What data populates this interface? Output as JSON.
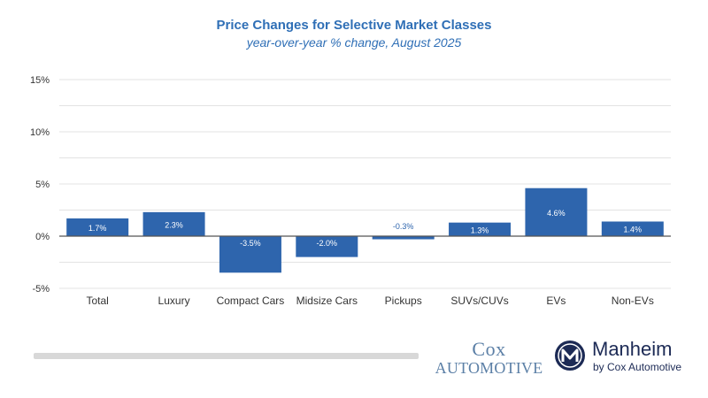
{
  "chart_data": {
    "type": "bar",
    "title": "Price Changes for Selective Market Classes",
    "subtitle": "year-over-year % change, August 2025",
    "categories": [
      "Total",
      "Luxury",
      "Compact Cars",
      "Midsize Cars",
      "Pickups",
      "SUVs/CUVs",
      "EVs",
      "Non-EVs"
    ],
    "values": [
      1.7,
      2.3,
      -3.5,
      -2.0,
      -0.3,
      1.3,
      4.6,
      1.4
    ],
    "data_labels": [
      "1.7%",
      "2.3%",
      "-3.5%",
      "-2.0%",
      "-0.3%",
      "1.3%",
      "4.6%",
      "1.4%"
    ],
    "ylim": [
      -5,
      15
    ],
    "y_ticks": [
      15,
      10,
      5,
      0,
      -5
    ],
    "y_tick_labels": [
      "15%",
      "10%",
      "5%",
      "0%",
      "-5%"
    ],
    "xlabel": "",
    "ylabel": "",
    "grid": true,
    "bar_color": "#2e65ad",
    "grid_color": "#e3e3e3"
  },
  "branding": {
    "cox_line1": "Cox",
    "cox_line2": "Automotive",
    "manheim_name": "Manheim",
    "manheim_tagline": "by Cox Automotive",
    "cox_color": "#5b7fa6",
    "manheim_color": "#1c2a55"
  }
}
